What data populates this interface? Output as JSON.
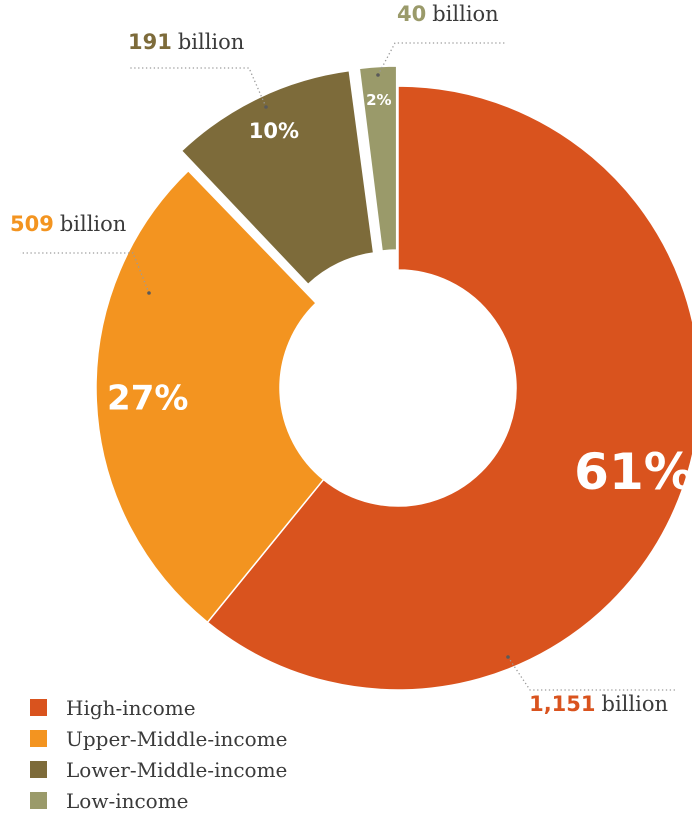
{
  "chart_data": {
    "type": "pie",
    "donut": true,
    "series": [
      {
        "name": "High-income",
        "value": 1151,
        "percent_label": "61%",
        "value_label": "1,151",
        "unit_label": "billion",
        "color": "#d9531e",
        "exploded": false
      },
      {
        "name": "Upper-Middle-income",
        "value": 509,
        "percent_label": "27%",
        "value_label": "509",
        "unit_label": "billion",
        "color": "#f39420",
        "exploded": false
      },
      {
        "name": "Lower-Middle-income",
        "value": 191,
        "percent_label": "10%",
        "value_label": "191",
        "unit_label": "billion",
        "color": "#7d6b3a",
        "exploded": true
      },
      {
        "name": "Low-income",
        "value": 40,
        "percent_label": "2%",
        "value_label": "40",
        "unit_label": "billion",
        "color": "#9a9a6a",
        "exploded": true
      }
    ],
    "legend_placement": "bottom-left"
  }
}
